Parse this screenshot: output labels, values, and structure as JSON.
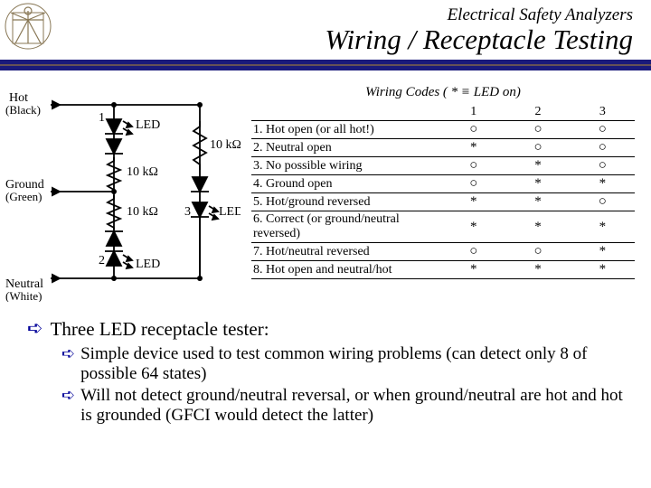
{
  "header": {
    "subtitle": "Electrical Safety Analyzers",
    "title": "Wiring / Receptacle Testing"
  },
  "circuit": {
    "hot_label": "Hot",
    "hot_color": "(Black)",
    "ground_label": "Ground",
    "ground_color": "(Green)",
    "neutral_label": "Neutral",
    "neutral_color": "(White)",
    "r_label": "10 kΩ",
    "led_label": "LED",
    "node1": "1",
    "node2": "2",
    "node3": "3"
  },
  "codes": {
    "header": "Wiring Codes  ( * ≡ LED on)",
    "col1": "1",
    "col2": "2",
    "col3": "3",
    "rows": [
      {
        "label": "1. Hot open (or all hot!)",
        "leds": [
          "○",
          "○",
          "○"
        ]
      },
      {
        "label": "2. Neutral open",
        "leds": [
          "*",
          "○",
          "○"
        ]
      },
      {
        "label": "3. No possible wiring",
        "leds": [
          "○",
          "*",
          "○"
        ]
      },
      {
        "label": "4. Ground open",
        "leds": [
          "○",
          "*",
          "*"
        ]
      },
      {
        "label": "5. Hot/ground reversed",
        "leds": [
          "*",
          "*",
          "○"
        ]
      },
      {
        "label": "6. Correct (or ground/neutral reversed)",
        "leds": [
          "*",
          "*",
          "*"
        ]
      },
      {
        "label": "7. Hot/neutral reversed",
        "leds": [
          "○",
          "○",
          "*"
        ]
      },
      {
        "label": "8. Hot open and neutral/hot",
        "leds": [
          "*",
          "*",
          "*"
        ]
      }
    ]
  },
  "bullets": {
    "lvl1": "Three LED receptacle tester:",
    "lvl2a": "Simple device used to test common wiring problems (can detect only 8 of possible 64 states)",
    "lvl2b": "Will not detect ground/neutral reversal, or when ground/neutral are hot and hot is grounded (GFCI would detect the latter)"
  },
  "style": {
    "accent": "#000099",
    "bar_navy": "#1a1a7a",
    "bar_gold": "#b08830"
  }
}
